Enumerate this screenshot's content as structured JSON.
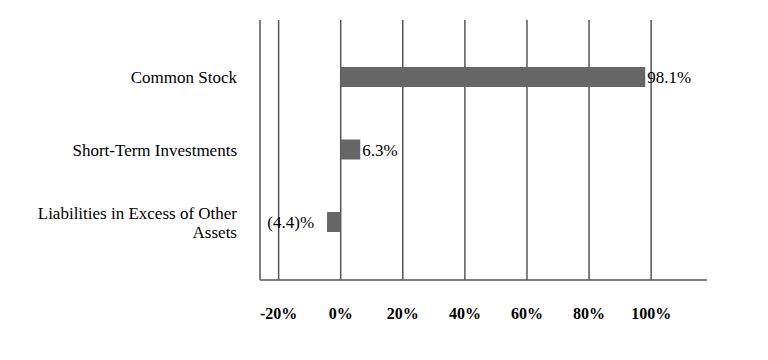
{
  "chart_data": {
    "type": "bar",
    "orientation": "horizontal",
    "categories": [
      "Common Stock",
      "Short-Term Investments",
      "Liabilities in Excess of Other Assets"
    ],
    "values": [
      98.1,
      6.3,
      -4.4
    ],
    "value_labels": [
      "98.1%",
      "6.3%",
      "(4.4)%"
    ],
    "data_labels": true,
    "color": "#666666",
    "xlim": [
      -26,
      118
    ],
    "xticks": [
      {
        "value": -20,
        "label": "-20%"
      },
      {
        "value": 0,
        "label": "0%"
      },
      {
        "value": 20,
        "label": "20%"
      },
      {
        "value": 40,
        "label": "40%"
      },
      {
        "value": 60,
        "label": "60%"
      },
      {
        "value": 80,
        "label": "80%"
      },
      {
        "value": 100,
        "label": "100%"
      }
    ],
    "grid": true
  }
}
